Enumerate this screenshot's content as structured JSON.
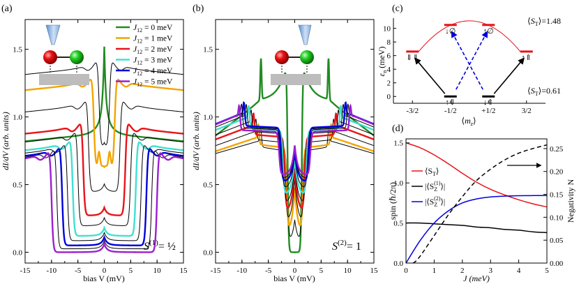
{
  "chart_data": [
    {
      "panel": "(a)",
      "type": "line",
      "xlabel": "bias V (mV)",
      "ylabel": "dI/dV (arb. units)",
      "xlim": [
        -15,
        15
      ],
      "ylim": [
        -0.08,
        1.72
      ],
      "xticks": [
        -15,
        -10,
        -5,
        0,
        5,
        10,
        15
      ],
      "yticks": [
        0.0,
        0.5,
        1.0,
        1.5
      ],
      "xtick_labels": [
        "-15",
        "-10",
        "-5",
        "0",
        "5",
        "10",
        "15"
      ],
      "ytick_labels": [
        "0.0",
        "0.5",
        "1.0",
        "1.5"
      ],
      "annotation_sym": "S",
      "annotation_sup": "(1)",
      "annotation_rest": "= ½",
      "legend": {
        "prefix": "J",
        "sub": "12",
        "entries": [
          "= 0 meV",
          "= 1 meV",
          "= 2 meV",
          "= 3 meV",
          "= 4 meV",
          "= 5 meV"
        ],
        "colors": [
          "#228b22",
          "#f4a400",
          "#e8131a",
          "#40e0d0",
          "#0000dd",
          "#9b1fd1"
        ]
      },
      "series": [
        {
          "name": "J12 = 0 meV",
          "color": "#228b22",
          "J": 0,
          "base": 0.88,
          "peak": 1.52
        },
        {
          "name": "J12 = 1 meV",
          "color": "#f4a400",
          "J": 1,
          "base": 0.62,
          "peak": 1.04
        },
        {
          "name": "J12 = 2 meV",
          "color": "#e8131a",
          "J": 2,
          "base": 0.27,
          "peak": 0.33
        },
        {
          "name": "J12 = 3 meV",
          "color": "#40e0d0",
          "J": 3,
          "base": 0.12,
          "peak": 0.18
        },
        {
          "name": "J12 = 4 meV",
          "color": "#0000dd",
          "J": 4,
          "base": 0.05,
          "peak": 0.09
        },
        {
          "name": "J12 = 5 meV",
          "color": "#9b1fd1",
          "J": 5,
          "base": 0.0,
          "peak": 0.03
        }
      ]
    },
    {
      "panel": "(b)",
      "type": "line",
      "xlabel": "bias V (mV)",
      "ylabel": "dI/dV (arb. units)",
      "xlim": [
        -15,
        15
      ],
      "ylim": [
        -0.08,
        1.72
      ],
      "xticks": [
        -15,
        -10,
        -5,
        0,
        5,
        10,
        15
      ],
      "yticks": [
        0.0,
        0.5,
        1.0,
        1.5
      ],
      "xtick_labels": [
        "-15",
        "-10",
        "-5",
        "0",
        "5",
        "10",
        "15"
      ],
      "ytick_labels": [
        "0.0",
        "0.5",
        "1.0",
        "1.5"
      ],
      "annotation_sym": "S",
      "annotation_sup": "(2)",
      "annotation_rest": "= 1",
      "series": [
        {
          "name": "J12 = 0 meV",
          "color": "#228b22",
          "J": 0,
          "base": 0.0,
          "peak": 0.0
        },
        {
          "name": "J12 = 1 meV",
          "color": "#f4a400",
          "J": 1,
          "base": 0.13,
          "peak": 0.48
        },
        {
          "name": "J12 = 2 meV",
          "color": "#e8131a",
          "J": 2,
          "base": 0.29,
          "peak": 0.62
        },
        {
          "name": "J12 = 3 meV",
          "color": "#40e0d0",
          "J": 3,
          "base": 0.42,
          "peak": 0.7
        },
        {
          "name": "J12 = 4 meV",
          "color": "#0000dd",
          "J": 4,
          "base": 0.52,
          "peak": 0.75
        },
        {
          "name": "J12 = 5 meV",
          "color": "#9b1fd1",
          "J": 5,
          "base": 0.57,
          "peak": 0.79
        }
      ]
    },
    {
      "panel": "(c)",
      "type": "scatter",
      "xlabel_sym": "m",
      "xlabel_sub": "z",
      "ylabel": "ε",
      "ylabel_sub": "n",
      "ylabel_unit": " (meV)",
      "xlim": [
        -2.0,
        2.0
      ],
      "ylim": [
        -1,
        11.5
      ],
      "xtick_labels": [
        "-3/2",
        "-1/2",
        "+1/2",
        "3/2"
      ],
      "yticks": [
        0,
        2,
        4,
        6,
        8,
        10
      ],
      "ytick_labels": [
        "0",
        "2",
        "4",
        "6",
        "8",
        "10"
      ],
      "levels": [
        {
          "mz": -1.5,
          "energy": 6.6,
          "label": "⇓⇓",
          "color": "#e8131a"
        },
        {
          "mz": -0.5,
          "energy": 10.5,
          "label": "↓∅",
          "color": "#e8131a"
        },
        {
          "mz": 0.5,
          "energy": 10.5,
          "label": "↑∅",
          "color": "#e8131a"
        },
        {
          "mz": 1.5,
          "energy": 6.6,
          "label": "↑⇑",
          "color": "#e8131a"
        },
        {
          "mz": -0.5,
          "energy": 0.0,
          "label": "↑⇓",
          "color": "#000000"
        },
        {
          "mz": 0.5,
          "energy": 0.0,
          "label": "↓⇑",
          "color": "#000000"
        }
      ],
      "top_label_sym": "S",
      "top_label_sub": "T",
      "top_label_value": "=1.48",
      "bottom_label_sym": "S",
      "bottom_label_sub": "T",
      "bottom_label_value": "=0.61"
    },
    {
      "panel": "(d)",
      "type": "line",
      "xlabel": "J (meV)",
      "ylabel": "spin (ℏ/2π)",
      "ylabel_right": "Negativity N",
      "xlim": [
        0,
        5
      ],
      "ylim": [
        0,
        1.55
      ],
      "ylim_right": [
        0,
        0.2712
      ],
      "xticks": [
        0,
        1,
        2,
        3,
        4,
        5
      ],
      "xtick_labels": [
        "0",
        "1",
        "2",
        "3",
        "4",
        "5"
      ],
      "yticks": [
        0.0,
        0.5,
        1.0,
        1.5
      ],
      "ytick_labels": [
        "0.0",
        "0.5",
        "1.0",
        "1.5"
      ],
      "yticks_right": [
        0.0,
        0.05,
        0.1,
        0.15,
        0.2,
        0.25
      ],
      "ytick_labels_right": [
        "0.00",
        "0.05",
        "0.10",
        "0.15",
        "0.20",
        "0.25"
      ],
      "series": [
        {
          "name": "⟨ST⟩",
          "color": "#e8131a",
          "x": [
            0,
            0.5,
            1,
            1.5,
            2,
            2.5,
            3,
            3.5,
            4,
            4.5,
            5
          ],
          "y": [
            1.5,
            1.44,
            1.35,
            1.24,
            1.12,
            1.01,
            0.92,
            0.85,
            0.79,
            0.74,
            0.7
          ]
        },
        {
          "name": "|⟨Sz(1)⟩|",
          "color": "#000000",
          "x": [
            0,
            0.5,
            1,
            1.5,
            2,
            2.5,
            3,
            3.5,
            4,
            4.5,
            5
          ],
          "y": [
            0.5,
            0.5,
            0.49,
            0.48,
            0.47,
            0.45,
            0.44,
            0.42,
            0.41,
            0.39,
            0.38
          ]
        },
        {
          "name": "|⟨Sz(2)⟩|",
          "color": "#0000dd",
          "x": [
            0,
            0.5,
            1,
            1.5,
            2,
            2.5,
            3,
            3.5,
            4,
            4.5,
            5
          ],
          "y": [
            0.0,
            0.28,
            0.5,
            0.65,
            0.75,
            0.8,
            0.825,
            0.835,
            0.84,
            0.842,
            0.843
          ]
        },
        {
          "name": "Negativity N",
          "color": "#000000",
          "dashed": true,
          "axis": "right",
          "x": [
            0,
            0.25,
            0.5,
            1,
            1.5,
            2,
            2.5,
            3,
            3.5,
            4,
            4.5,
            5
          ],
          "y": [
            0.0,
            0.0,
            0.015,
            0.06,
            0.105,
            0.145,
            0.18,
            0.205,
            0.225,
            0.24,
            0.25,
            0.258
          ]
        }
      ],
      "legend_labels": [
        {
          "pre": "⟨S",
          "sub": "T",
          "post": "⟩"
        },
        {
          "pre": "|⟨S",
          "sub": "Z",
          "sup": "(1)",
          "post": "⟩|"
        },
        {
          "pre": "|⟨S",
          "sub": "Z",
          "sup": "(2)",
          "post": "⟩|"
        }
      ]
    }
  ]
}
